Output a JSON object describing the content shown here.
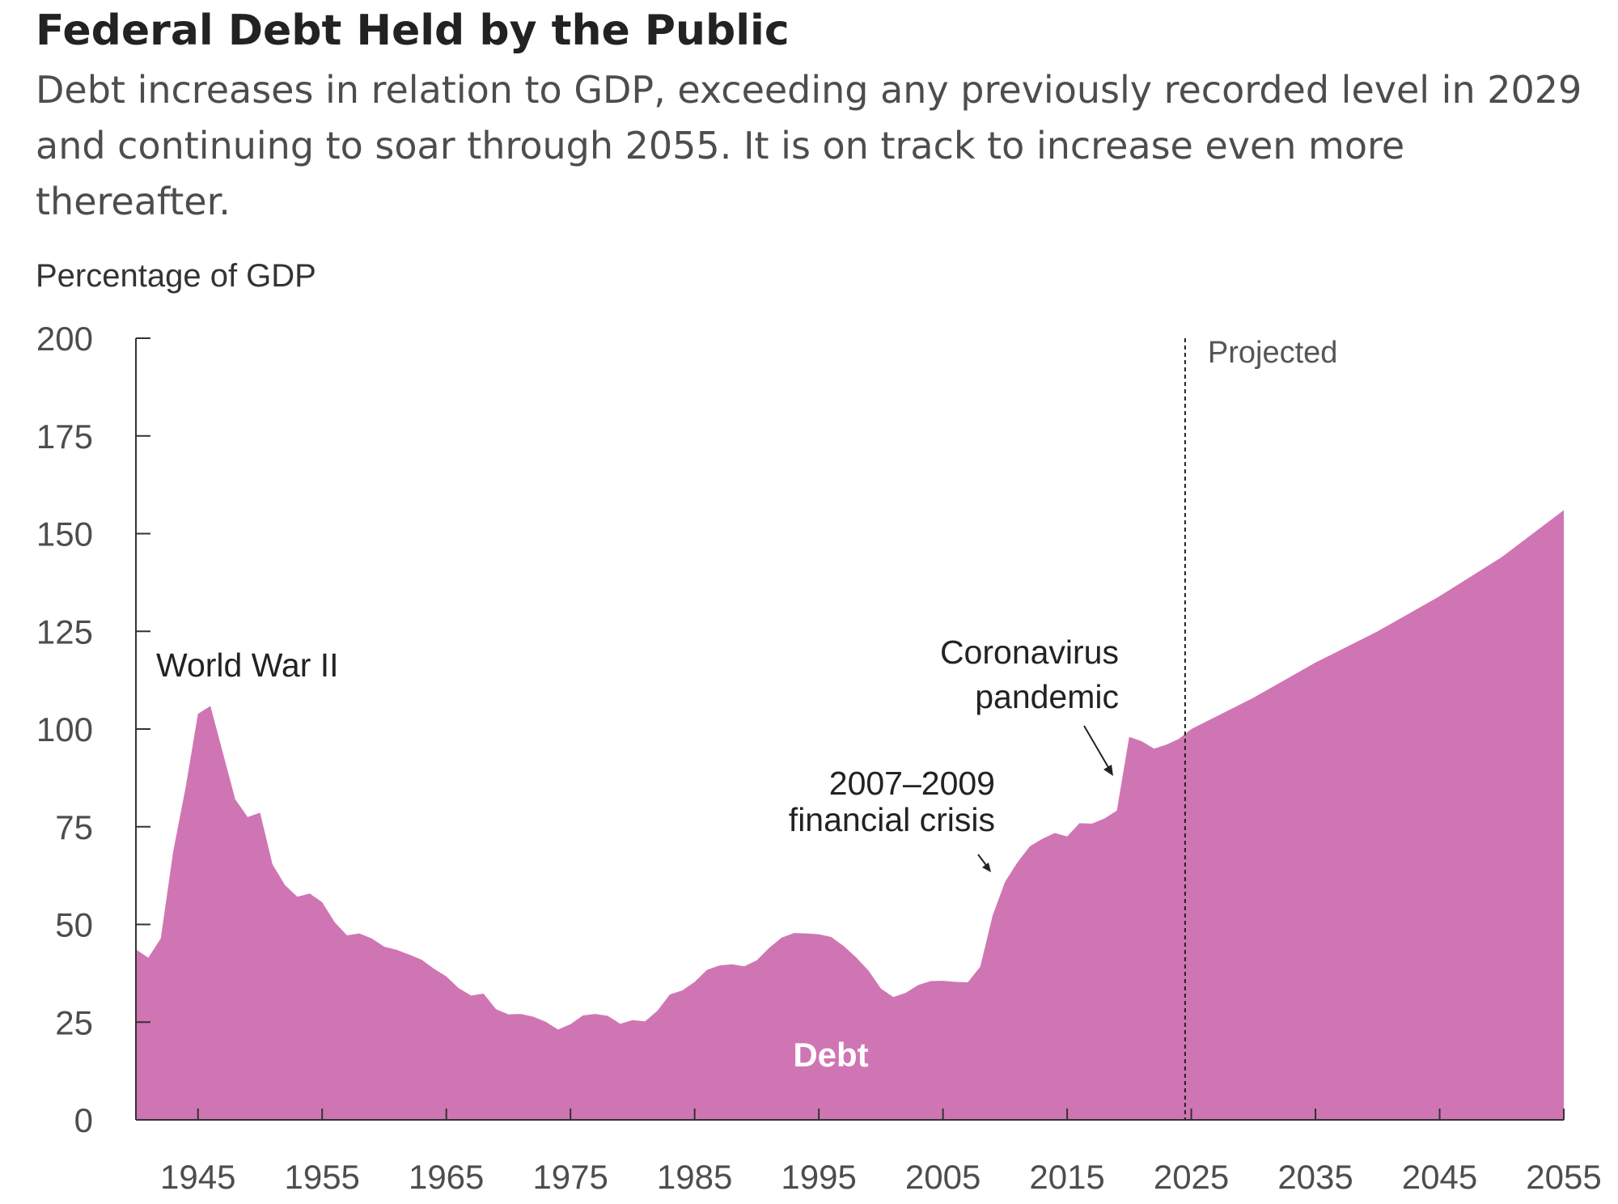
{
  "chart_data": {
    "type": "area",
    "title": "Federal Debt Held by the Public",
    "subtitle_lines": [
      "Debt increases in relation to GDP, exceeding any previously recorded level in 2029",
      "and continuing to soar through 2055. It is on track to increase even more",
      "thereafter."
    ],
    "ylabel": "Percentage of GDP",
    "xlim": [
      1940,
      2055
    ],
    "ylim": [
      0,
      200
    ],
    "y_ticks": [
      0,
      25,
      50,
      75,
      100,
      125,
      150,
      175,
      200
    ],
    "y_tick_labels": [
      "0",
      "25",
      "50",
      "75",
      "100",
      "125",
      "150",
      "175",
      "200"
    ],
    "x_ticks": [
      1945,
      1955,
      1965,
      1975,
      1985,
      1995,
      2005,
      2015,
      2025,
      2035,
      2045,
      2055
    ],
    "x_tick_labels": [
      "1945",
      "1955",
      "1965",
      "1975",
      "1985",
      "1995",
      "2005",
      "2015",
      "2025",
      "2035",
      "2045",
      "2055"
    ],
    "grid": false,
    "projected_start": 2024.5,
    "projected_label": "Projected",
    "series": [
      {
        "name": "Debt",
        "color": "#d075b4",
        "x": [
          1940,
          1941,
          1942,
          1943,
          1944,
          1945,
          1946,
          1947,
          1948,
          1949,
          1950,
          1951,
          1952,
          1953,
          1954,
          1955,
          1956,
          1957,
          1958,
          1959,
          1960,
          1961,
          1962,
          1963,
          1964,
          1965,
          1966,
          1967,
          1968,
          1969,
          1970,
          1971,
          1972,
          1973,
          1974,
          1975,
          1976,
          1977,
          1978,
          1979,
          1980,
          1981,
          1982,
          1983,
          1984,
          1985,
          1986,
          1987,
          1988,
          1989,
          1990,
          1991,
          1992,
          1993,
          1994,
          1995,
          1996,
          1997,
          1998,
          1999,
          2000,
          2001,
          2002,
          2003,
          2004,
          2005,
          2006,
          2007,
          2008,
          2009,
          2010,
          2011,
          2012,
          2013,
          2014,
          2015,
          2016,
          2017,
          2018,
          2019,
          2020,
          2021,
          2022,
          2023,
          2024,
          2025,
          2030,
          2035,
          2040,
          2045,
          2050,
          2055
        ],
        "values": [
          43.6,
          41.5,
          46.4,
          68.6,
          85.0,
          103.9,
          105.9,
          94.0,
          82.0,
          77.5,
          78.6,
          65.4,
          60.1,
          57.1,
          57.9,
          55.7,
          50.6,
          47.2,
          47.7,
          46.4,
          44.3,
          43.5,
          42.3,
          41.0,
          38.7,
          36.7,
          33.7,
          31.8,
          32.3,
          28.3,
          27.0,
          27.1,
          26.4,
          25.1,
          23.1,
          24.5,
          26.7,
          27.1,
          26.6,
          24.6,
          25.5,
          25.2,
          27.9,
          32.1,
          33.1,
          35.3,
          38.4,
          39.5,
          39.8,
          39.3,
          40.8,
          44.0,
          46.6,
          47.8,
          47.7,
          47.5,
          46.8,
          44.5,
          41.6,
          38.2,
          33.6,
          31.4,
          32.5,
          34.5,
          35.5,
          35.6,
          35.3,
          35.2,
          39.2,
          52.3,
          60.9,
          65.9,
          70.0,
          71.9,
          73.4,
          72.5,
          75.9,
          75.8,
          77.1,
          79.1,
          98.0,
          96.9,
          95.0,
          96.0,
          97.5,
          100.0,
          108.0,
          117.0,
          125.0,
          134.0,
          144.0,
          156.0
        ]
      }
    ],
    "annotations": [
      {
        "lines": [
          "World War II"
        ],
        "year": 1945
      },
      {
        "lines": [
          "2007–2009",
          "financial crisis"
        ],
        "year": 2009
      },
      {
        "lines": [
          "Coronavirus",
          "pandemic"
        ],
        "year": 2020
      }
    ],
    "series_label": "Debt"
  }
}
